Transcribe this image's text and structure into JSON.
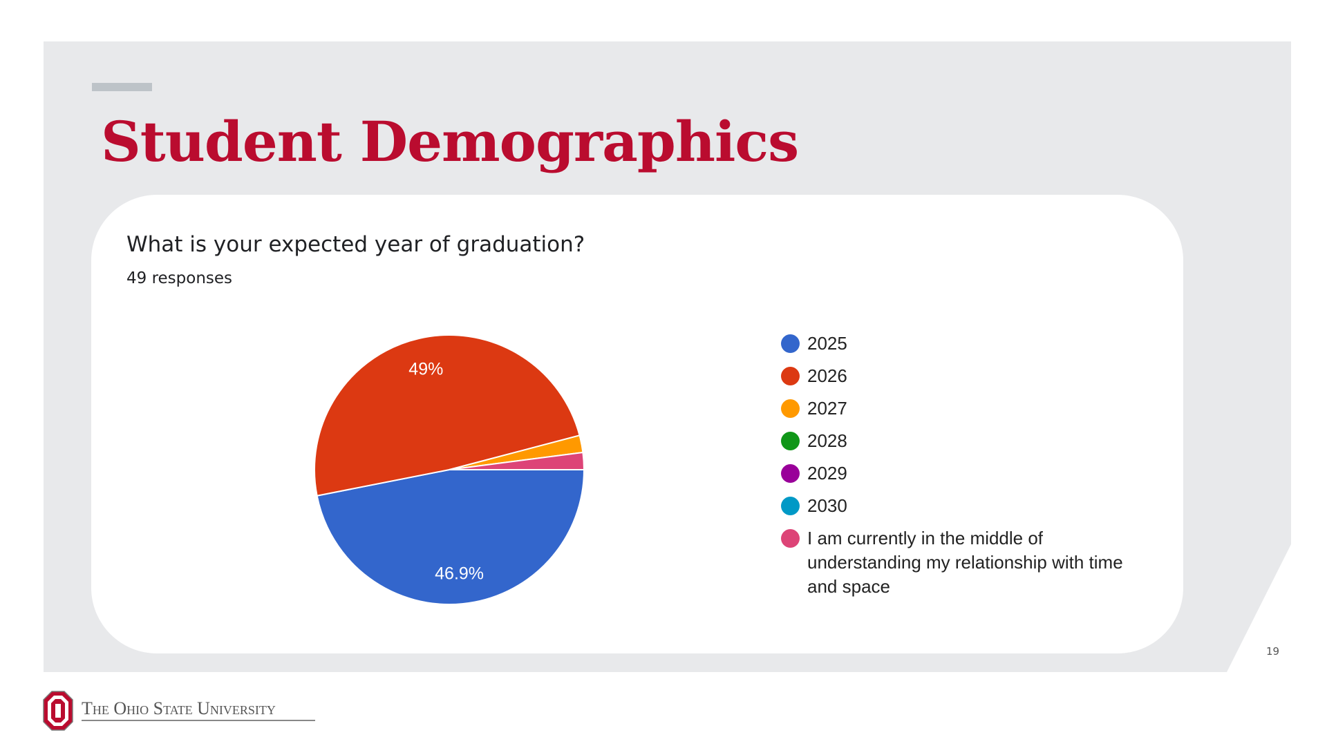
{
  "slide": {
    "title": "Student Demographics",
    "page_number": "19",
    "university": "The Ohio State University"
  },
  "colors": {
    "title": "#ba0c2f",
    "panel": "#e8e9eb",
    "card": "#ffffff"
  },
  "chart_data": {
    "type": "pie",
    "title": "What is your expected year of graduation?",
    "subtitle": "49 responses",
    "legend_position": "right",
    "categories": [
      "2025",
      "2026",
      "2027",
      "2028",
      "2029",
      "2030",
      "I am currently in the middle of understanding my relationship with time and space"
    ],
    "values": [
      46.9,
      49.0,
      2.05,
      0,
      0,
      0,
      2.05
    ],
    "colors": [
      "#3366cc",
      "#dc3912",
      "#ff9900",
      "#109618",
      "#990099",
      "#0099c6",
      "#dd4477"
    ],
    "data_labels": [
      "46.9%",
      "49%",
      "",
      "",
      "",
      "",
      ""
    ]
  }
}
